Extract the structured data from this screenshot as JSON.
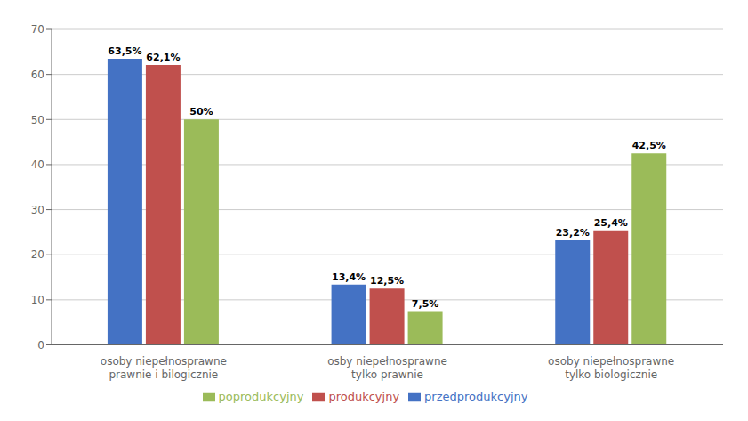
{
  "chart_data": {
    "type": "bar",
    "categories": [
      "osoby niepełnosprawne\nprawnie i bilogicznie",
      "osby niepełnosprawne\ntylko prawnie",
      "osoby niepełnosprawne\ntylko biologicznie"
    ],
    "series": [
      {
        "name": "przedprodukcyjny",
        "color": "#4472C4",
        "values": [
          63.5,
          13.4,
          23.2
        ],
        "value_labels": [
          "63,5%",
          "13,4%",
          "23,2%"
        ]
      },
      {
        "name": "produkcyjny",
        "color": "#C0504D",
        "values": [
          62.1,
          12.5,
          25.4
        ],
        "value_labels": [
          "62,1%",
          "12,5%",
          "25,4%"
        ]
      },
      {
        "name": "poprodukcyjny",
        "color": "#9BBB59",
        "values": [
          50.0,
          7.5,
          42.5
        ],
        "value_labels": [
          "50%",
          "7,5%",
          "42,5%"
        ]
      }
    ],
    "ylim": [
      0,
      70
    ],
    "yticks": [
      0,
      10,
      20,
      30,
      40,
      50,
      60,
      70
    ],
    "grid": true,
    "legend": "bottom",
    "data_labels": true
  }
}
